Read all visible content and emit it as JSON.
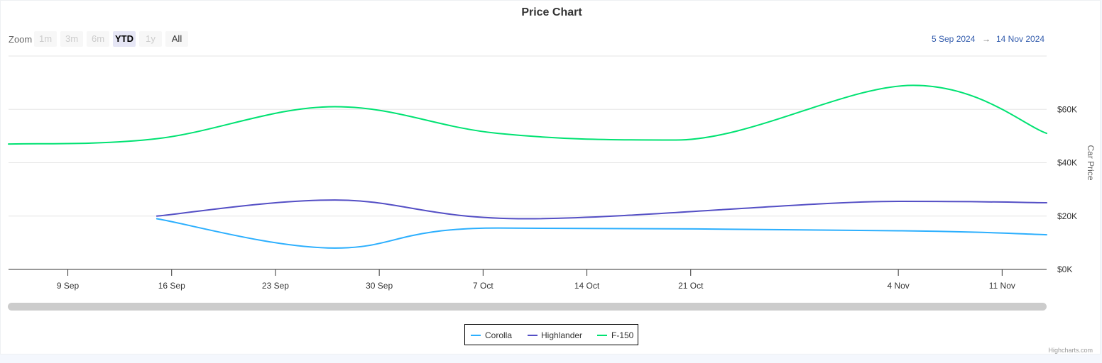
{
  "title": "Price Chart",
  "toolbar": {
    "zoom_label": "Zoom",
    "buttons": [
      {
        "label": "1m",
        "state": "disabled"
      },
      {
        "label": "3m",
        "state": "disabled"
      },
      {
        "label": "6m",
        "state": "disabled"
      },
      {
        "label": "YTD",
        "state": "active"
      },
      {
        "label": "1y",
        "state": "disabled"
      },
      {
        "label": "All",
        "state": "enabled"
      }
    ],
    "range_from": "5 Sep 2024",
    "range_arrow": "→",
    "range_to": "14 Nov 2024"
  },
  "credits": "Highcharts.com",
  "chart_data": {
    "type": "line",
    "title": "Price Chart",
    "ylabel": "Car Price",
    "ylim": [
      0,
      80000
    ],
    "xlim": [
      "2024-09-05",
      "2024-11-14"
    ],
    "x_ticks": [
      "9 Sep",
      "16 Sep",
      "23 Sep",
      "30 Sep",
      "7 Oct",
      "14 Oct",
      "21 Oct",
      "4 Nov",
      "11 Nov"
    ],
    "x_tick_dates": [
      "2024-09-09",
      "2024-09-16",
      "2024-09-23",
      "2024-09-30",
      "2024-10-07",
      "2024-10-14",
      "2024-10-21",
      "2024-11-04",
      "2024-11-11"
    ],
    "y_ticks": [
      "$0K",
      "$20K",
      "$40K",
      "$60K"
    ],
    "y_tick_values": [
      0,
      20000,
      40000,
      60000
    ],
    "grid": true,
    "legend": "bottom-center",
    "colors": {
      "Corolla": "#2caffe",
      "Highlander": "#544fc5",
      "F-150": "#00e272"
    },
    "series": [
      {
        "name": "Corolla",
        "x": [
          "2024-09-15",
          "2024-09-27",
          "2024-10-08",
          "2024-11-04",
          "2024-11-14"
        ],
        "values": [
          19000,
          8000,
          15500,
          14500,
          13000
        ]
      },
      {
        "name": "Highlander",
        "x": [
          "2024-09-15",
          "2024-09-27",
          "2024-10-10",
          "2024-11-04",
          "2024-11-14"
        ],
        "values": [
          20000,
          26000,
          19000,
          25500,
          25000
        ]
      },
      {
        "name": "F-150",
        "x": [
          "2024-09-05",
          "2024-09-15",
          "2024-09-27",
          "2024-10-08",
          "2024-10-20",
          "2024-11-05",
          "2024-11-14"
        ],
        "values": [
          47000,
          49000,
          61000,
          51000,
          48500,
          69000,
          51000
        ]
      }
    ]
  }
}
